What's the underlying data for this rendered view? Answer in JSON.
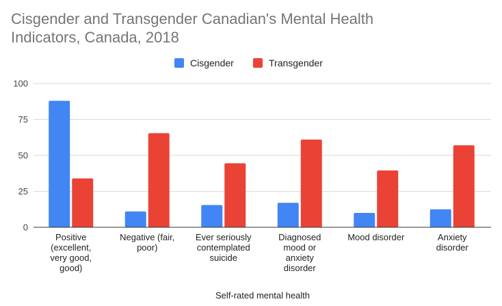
{
  "chart_data": {
    "type": "bar",
    "title_lines": [
      "Cisgender and Transgender Canadian's Mental Health",
      "Indicators, Canada, 2018"
    ],
    "xlabel": "Self-rated mental health",
    "ylabel": "",
    "ylim": [
      0,
      100
    ],
    "yticks": [
      0,
      25,
      50,
      75,
      100
    ],
    "grid": true,
    "legend_position": "top",
    "categories": [
      [
        "Positive",
        "(excellent,",
        "very good,",
        "good)"
      ],
      [
        "Negative (fair,",
        "poor)"
      ],
      [
        "Ever seriously",
        "contemplated",
        "suicide"
      ],
      [
        "Diagnosed",
        "mood or",
        "anxiety",
        "disorder"
      ],
      [
        "Mood disorder"
      ],
      [
        "Anxiety",
        "disorder"
      ]
    ],
    "series": [
      {
        "name": "Cisgender",
        "color": "#4285F4",
        "values": [
          88,
          11,
          15.5,
          17,
          10,
          12.5
        ]
      },
      {
        "name": "Transgender",
        "color": "#EA4335",
        "values": [
          34,
          65.5,
          44.5,
          61,
          39.5,
          57
        ]
      }
    ]
  }
}
